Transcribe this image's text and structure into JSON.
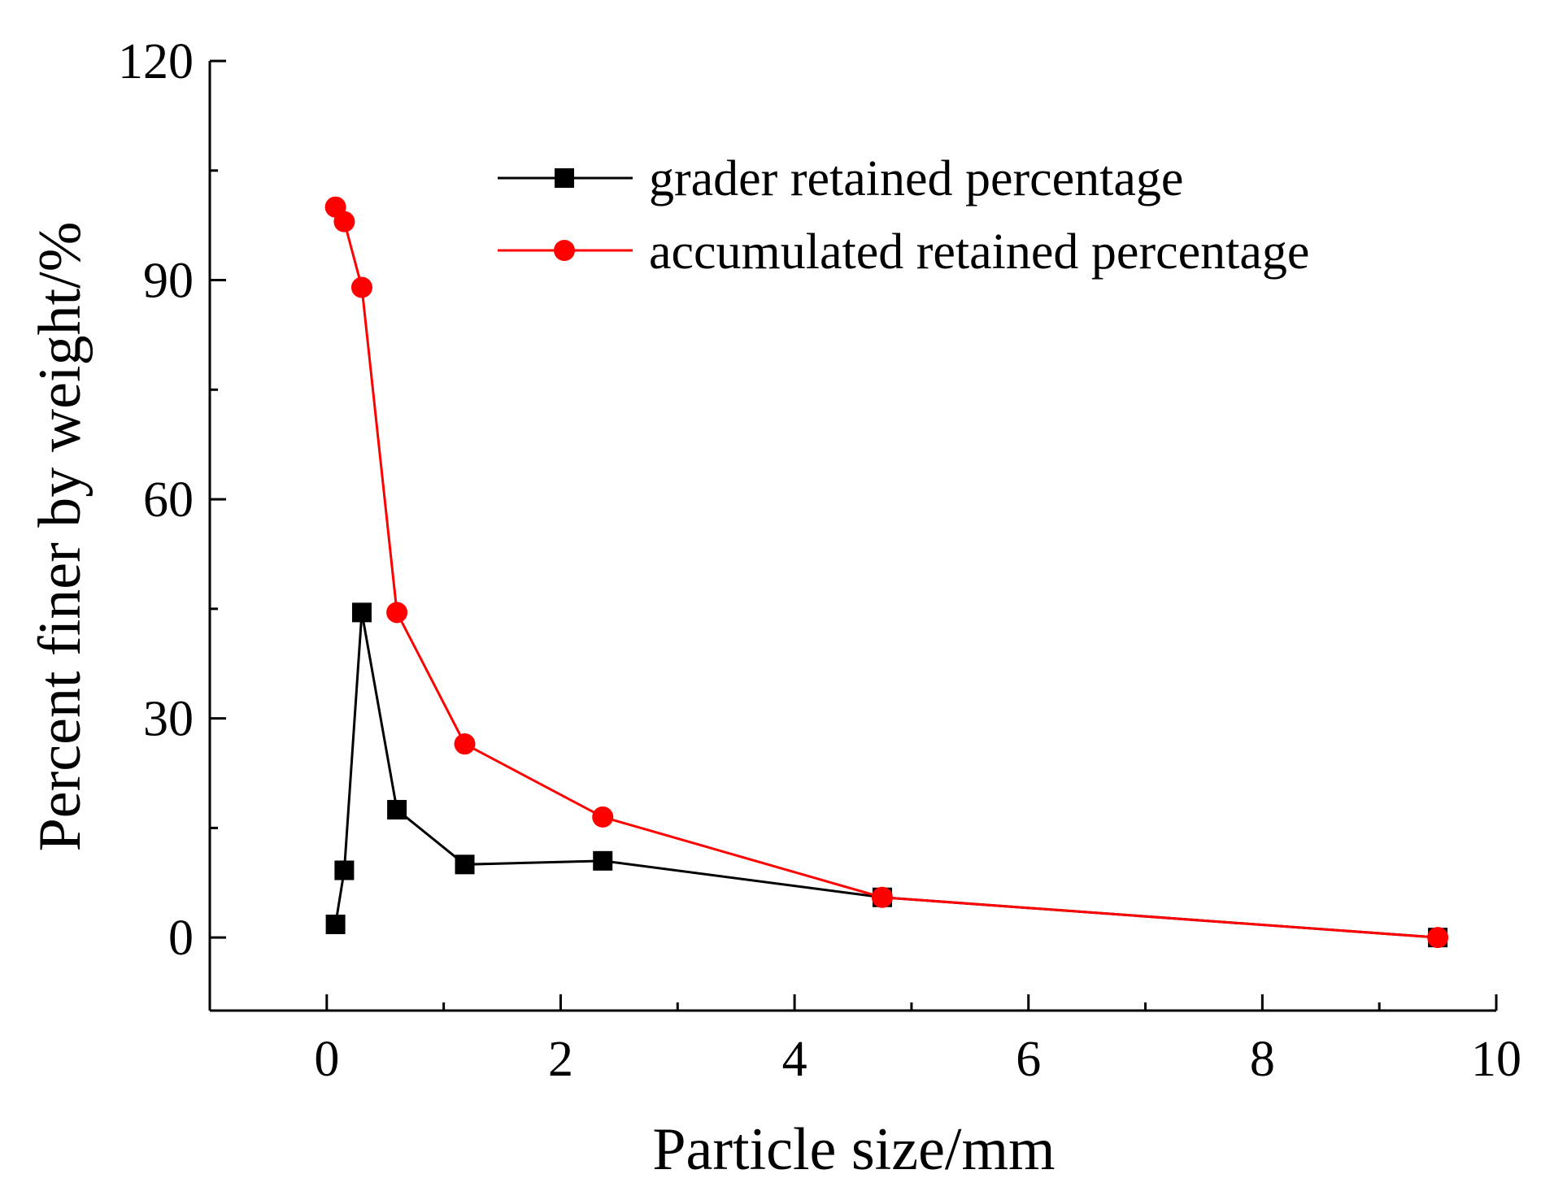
{
  "chart_data": {
    "type": "line",
    "title": "",
    "xlabel": "Particle size/mm",
    "ylabel": "Percent finer by weight/%",
    "xlim": [
      -1,
      10
    ],
    "ylim": [
      -10,
      120
    ],
    "xticks": [
      0,
      2,
      4,
      6,
      8,
      10
    ],
    "yticks": [
      0,
      30,
      60,
      90,
      120
    ],
    "xtick_labels": [
      "0",
      "2",
      "4",
      "6",
      "8",
      "10"
    ],
    "ytick_labels": [
      "0",
      "30",
      "60",
      "90",
      "120"
    ],
    "grid": false,
    "legend_position": "top-right",
    "series": [
      {
        "name": "grader retained percentage",
        "color": "#000000",
        "marker": "square",
        "x": [
          0.075,
          0.15,
          0.3,
          0.6,
          1.18,
          2.36,
          4.75,
          9.5
        ],
        "y": [
          1.8,
          9.2,
          44.5,
          17.5,
          10.0,
          10.5,
          5.5,
          0
        ]
      },
      {
        "name": "accumulated retained percentage",
        "color": "#ff0000",
        "marker": "circle",
        "x": [
          0.075,
          0.15,
          0.3,
          0.6,
          1.18,
          2.36,
          4.75,
          9.5
        ],
        "y": [
          100,
          98,
          89,
          44.5,
          26.5,
          16.5,
          5.5,
          0
        ]
      }
    ]
  }
}
